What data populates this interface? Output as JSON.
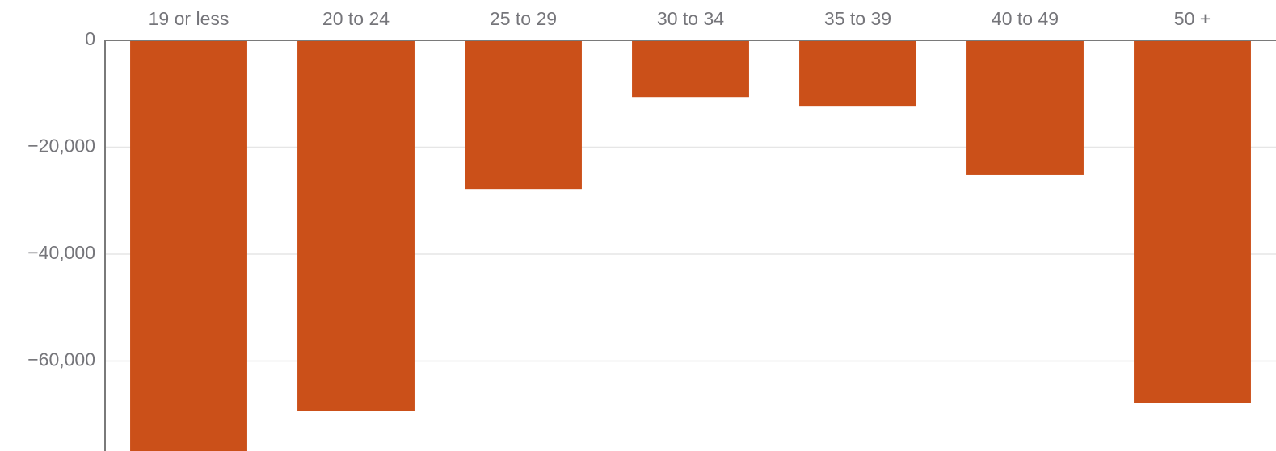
{
  "chart_data": {
    "type": "bar",
    "categories": [
      "19 or less",
      "20 to 24",
      "25 to 29",
      "30 to 34",
      "35 to 39",
      "40 to 49",
      "50 +"
    ],
    "values": [
      -78000,
      -69300,
      -27800,
      -10600,
      -12400,
      -25200,
      -67800
    ],
    "color": "#cb5019",
    "ylim": [
      -76000,
      0
    ],
    "yticks": [
      0,
      {
        "value": -20000,
        "label": "−20,000"
      },
      {
        "value": -40000,
        "label": "−40,000"
      },
      {
        "value": -60000,
        "label": "−60,000"
      }
    ],
    "grid": true
  }
}
